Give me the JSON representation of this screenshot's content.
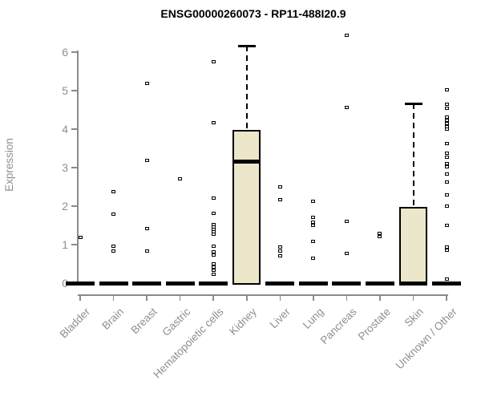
{
  "chart_data": {
    "type": "boxplot",
    "title": "ENSG00000260073 - RP11-488I20.9",
    "ylabel": "Expression",
    "ylim": [
      0,
      6.5
    ],
    "yticks": [
      0,
      1,
      2,
      3,
      4,
      5,
      6
    ],
    "grid": false,
    "legend": "none",
    "colors": {
      "box_fill": "#ece6cb",
      "box_border": "#000000",
      "axis": "#8a8a8a",
      "tick_labels": "#8f8f8f",
      "title": "#000000",
      "outlier_fill": "#ffffff",
      "outlier_border": "#000000"
    },
    "categories": [
      {
        "name": "Bladder",
        "q1": 0,
        "median": 0,
        "q3": 0,
        "whisker_low": 0,
        "whisker_high": 0,
        "outliers": [
          1.18
        ]
      },
      {
        "name": "Brain",
        "q1": 0,
        "median": 0,
        "q3": 0,
        "whisker_low": 0,
        "whisker_high": 0,
        "outliers": [
          2.38,
          1.79,
          0.95,
          0.84
        ]
      },
      {
        "name": "Breast",
        "q1": 0,
        "median": 0,
        "q3": 0,
        "whisker_low": 0,
        "whisker_high": 0,
        "outliers": [
          5.18,
          3.19,
          1.42,
          0.84
        ]
      },
      {
        "name": "Gastric",
        "q1": 0,
        "median": 0,
        "q3": 0,
        "whisker_low": 0,
        "whisker_high": 0,
        "outliers": [
          2.7
        ]
      },
      {
        "name": "Hematopoietic cells",
        "q1": 0,
        "median": 0,
        "q3": 0,
        "whisker_low": 0,
        "whisker_high": 0,
        "outliers": [
          5.76,
          4.17,
          2.2,
          1.81,
          1.53,
          1.46,
          1.4,
          1.34,
          1.27,
          0.95,
          0.81,
          0.73,
          0.51,
          0.41,
          0.33,
          0.22
        ]
      },
      {
        "name": "Kidney",
        "q1": 0,
        "median": 3.15,
        "q3": 3.97,
        "whisker_low": 0,
        "whisker_high": 6.16,
        "outliers": []
      },
      {
        "name": "Liver",
        "q1": 0,
        "median": 0,
        "q3": 0,
        "whisker_low": 0,
        "whisker_high": 0,
        "outliers": [
          2.49,
          2.16,
          0.94,
          0.84,
          0.7
        ]
      },
      {
        "name": "Lung",
        "q1": 0,
        "median": 0,
        "q3": 0,
        "whisker_low": 0,
        "whisker_high": 0,
        "outliers": [
          2.12,
          1.7,
          1.58,
          1.5,
          1.08,
          0.65
        ]
      },
      {
        "name": "Pancreas",
        "q1": 0,
        "median": 0,
        "q3": 0,
        "whisker_low": 0,
        "whisker_high": 0,
        "outliers": [
          6.44,
          4.57,
          1.6,
          0.77
        ]
      },
      {
        "name": "Prostate",
        "q1": 0,
        "median": 0,
        "q3": 0,
        "whisker_low": 0,
        "whisker_high": 0,
        "outliers": [
          1.3,
          1.21
        ]
      },
      {
        "name": "Skin",
        "q1": 0,
        "median": 0,
        "q3": 1.97,
        "whisker_low": 0,
        "whisker_high": 4.66,
        "outliers": []
      },
      {
        "name": "Unknown / Other",
        "q1": 0,
        "median": 0,
        "q3": 0,
        "whisker_low": 0,
        "whisker_high": 0,
        "outliers": [
          5.02,
          4.64,
          4.55,
          4.32,
          4.23,
          4.15,
          4.07,
          3.99,
          3.62,
          3.38,
          3.28,
          3.1,
          3.02,
          2.84,
          2.63,
          2.3,
          2.01,
          1.49,
          0.93,
          0.85,
          0.1
        ]
      }
    ]
  }
}
